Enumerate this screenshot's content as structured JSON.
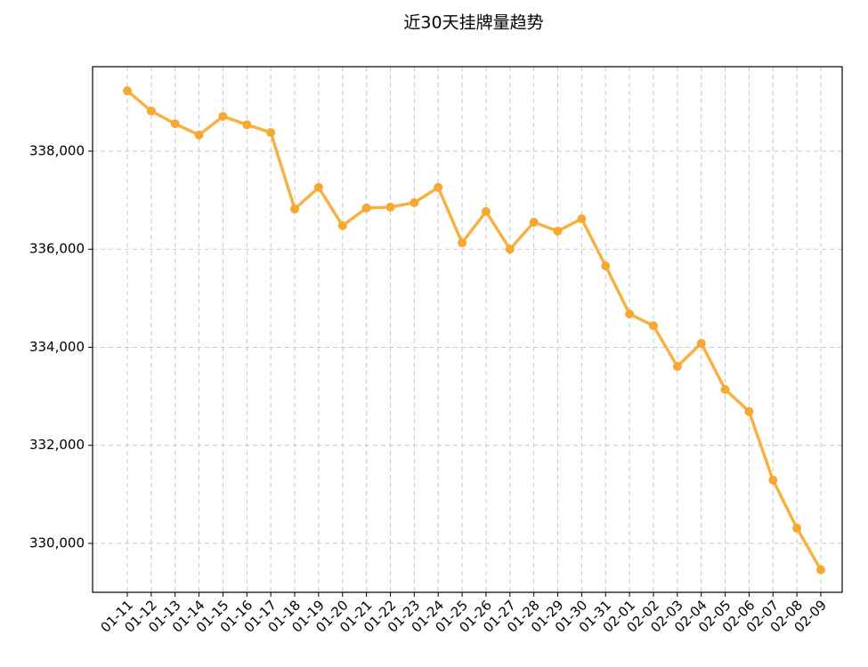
{
  "chart_data": {
    "type": "line",
    "title": "近30天挂牌量趋势",
    "categories": [
      "01-11",
      "01-12",
      "01-13",
      "01-14",
      "01-15",
      "01-16",
      "01-17",
      "01-18",
      "01-19",
      "01-20",
      "01-21",
      "01-22",
      "01-23",
      "01-24",
      "01-25",
      "01-26",
      "01-27",
      "01-28",
      "01-29",
      "01-30",
      "01-31",
      "02-01",
      "02-02",
      "02-03",
      "02-04",
      "02-05",
      "02-06",
      "02-07",
      "02-08",
      "02-09"
    ],
    "series": [
      {
        "color": "#f7a830",
        "values": [
          339230,
          338820,
          338560,
          338330,
          338710,
          338540,
          338380,
          336820,
          337260,
          336480,
          336840,
          336860,
          336950,
          337260,
          336130,
          336770,
          336000,
          336550,
          336370,
          336620,
          335660,
          334680,
          334440,
          333610,
          334080,
          333140,
          332690,
          331290,
          330310,
          329460
        ]
      }
    ],
    "ylim": [
      329002,
      339723
    ],
    "yticks": [
      {
        "value": 330000,
        "label": "330,000"
      },
      {
        "value": 332000,
        "label": "332,000"
      },
      {
        "value": 334000,
        "label": "334,000"
      },
      {
        "value": 336000,
        "label": "336,000"
      },
      {
        "value": 338000,
        "label": "338,000"
      }
    ],
    "grid": true
  }
}
